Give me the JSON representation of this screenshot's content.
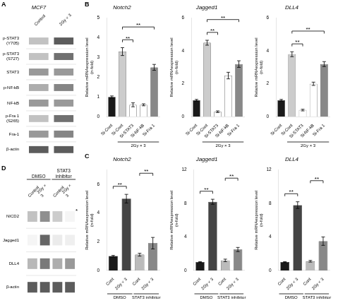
{
  "chart_data": [
    {
      "type": "heatmap",
      "title": "MCF7",
      "x": [
        "Control",
        "2Gy × 3"
      ],
      "y": [
        "p-STAT3\n(Y705)",
        "p-STAT3\n(S727)",
        "STAT3",
        "p-NF-kB",
        "NF-kB",
        "p-Fra 1\n(S265)",
        "Fra-1",
        "β-actin"
      ],
      "values": [
        [
          0.3,
          0.8
        ],
        [
          0.3,
          0.7
        ],
        [
          0.5,
          0.5
        ],
        [
          0.4,
          0.6
        ],
        [
          0.5,
          0.5
        ],
        [
          0.3,
          0.7
        ],
        [
          0.5,
          0.6
        ],
        [
          0.8,
          0.8
        ]
      ],
      "grid": false,
      "annotations": [
        {
          "text": "A"
        }
      ]
    },
    {
      "type": "bar",
      "title": "Notch2",
      "categories": [
        "Si-Cont",
        "Si-Cont",
        "Si-STAT3",
        "Si-NF-kB",
        "Si-Fra 1"
      ],
      "values": [
        1.0,
        3.3,
        0.6,
        0.6,
        2.5
      ],
      "errors": [
        0.05,
        0.2,
        0.1,
        0.05,
        0.15
      ],
      "colors": [
        "#1a1a1a",
        "#cccccc",
        "#ffffff",
        "#ffffff",
        "#888888"
      ],
      "ylim": [
        0,
        5
      ],
      "yticks": [
        0,
        1,
        2,
        3,
        4,
        5
      ],
      "ylabel": "Relative mRNAexpression level\n(n-fold)",
      "grid": false,
      "groups": [
        {
          "label": "2Gy × 3",
          "from": 1,
          "to": 4
        }
      ],
      "annotations": [
        {
          "text": "B"
        },
        {
          "text": "**",
          "between": [
            1,
            2
          ]
        },
        {
          "text": "**",
          "between": [
            1,
            4
          ]
        }
      ]
    },
    {
      "type": "bar",
      "title": "Jagged1",
      "categories": [
        "Si-Cont",
        "Si-Cont",
        "Si-STAT3",
        "Si-NF-kB",
        "Si-Fra 1"
      ],
      "values": [
        1.0,
        4.5,
        0.3,
        2.5,
        3.2
      ],
      "errors": [
        0.05,
        0.15,
        0.05,
        0.2,
        0.2
      ],
      "colors": [
        "#1a1a1a",
        "#cccccc",
        "#ffffff",
        "#ffffff",
        "#888888"
      ],
      "ylim": [
        0,
        6
      ],
      "yticks": [
        0,
        2,
        4,
        6
      ],
      "ylabel": "Relative mRNAexpression level\n(n-fold)",
      "grid": false,
      "groups": [
        {
          "label": "2Gy × 3",
          "from": 1,
          "to": 4
        }
      ],
      "annotations": [
        {
          "text": "**",
          "between": [
            1,
            2
          ]
        },
        {
          "text": "**",
          "between": [
            1,
            4
          ]
        }
      ]
    },
    {
      "type": "bar",
      "title": "DLL4",
      "categories": [
        "Si-Cont",
        "Si-Cont",
        "Si-STAT3",
        "Si-NF-kB",
        "Si-Fra 1"
      ],
      "values": [
        1.0,
        3.8,
        0.4,
        2.0,
        3.2
      ],
      "errors": [
        0.05,
        0.15,
        0.05,
        0.1,
        0.15
      ],
      "colors": [
        "#1a1a1a",
        "#cccccc",
        "#ffffff",
        "#ffffff",
        "#888888"
      ],
      "ylim": [
        0,
        6
      ],
      "yticks": [
        0,
        2,
        4,
        6
      ],
      "ylabel": "Relative mRNAexpression level\n(n-fold)",
      "grid": false,
      "groups": [
        {
          "label": "2Gy × 3",
          "from": 1,
          "to": 4
        }
      ],
      "annotations": [
        {
          "text": "**",
          "between": [
            1,
            2
          ]
        },
        {
          "text": "**",
          "between": [
            1,
            4
          ]
        }
      ]
    },
    {
      "type": "bar",
      "title": "Notch2",
      "categories": [
        "Cont",
        "2Gy × 3",
        "Cont",
        "2Gy × 3"
      ],
      "values": [
        1.0,
        5.0,
        1.1,
        1.9
      ],
      "errors": [
        0.05,
        0.3,
        0.1,
        0.4
      ],
      "colors": [
        "#1a1a1a",
        "#444444",
        "#bbbbbb",
        "#888888"
      ],
      "ylim": [
        0,
        7
      ],
      "yticks": [
        0,
        2,
        4,
        6
      ],
      "ylabel": "Relative mRNAexpression level\n(n-fold)",
      "grid": false,
      "groups": [
        {
          "label": "DMSO",
          "from": 0,
          "to": 1
        },
        {
          "label": "STAT3 inhibitor",
          "from": 2,
          "to": 3
        }
      ],
      "annotations": [
        {
          "text": "C"
        },
        {
          "text": "**",
          "between": [
            0,
            1
          ]
        },
        {
          "text": "**",
          "between": [
            2,
            3
          ]
        }
      ]
    },
    {
      "type": "bar",
      "title": "Jagged1",
      "categories": [
        "Cont",
        "2Gy × 3",
        "Cont",
        "2Gy × 3"
      ],
      "values": [
        1.0,
        8.2,
        1.2,
        2.5
      ],
      "errors": [
        0.05,
        0.3,
        0.15,
        0.25
      ],
      "colors": [
        "#1a1a1a",
        "#444444",
        "#bbbbbb",
        "#888888"
      ],
      "ylim": [
        0,
        12
      ],
      "yticks": [
        0,
        4,
        8,
        12
      ],
      "ylabel": "Relative mRNAexpression level\n(n-fold)",
      "grid": false,
      "groups": [
        {
          "label": "DMSO",
          "from": 0,
          "to": 1
        },
        {
          "label": "STAT3 inhibitor",
          "from": 2,
          "to": 3
        }
      ],
      "annotations": [
        {
          "text": "**",
          "between": [
            0,
            1
          ]
        },
        {
          "text": "**",
          "between": [
            2,
            3
          ]
        }
      ]
    },
    {
      "type": "bar",
      "title": "DLL4",
      "categories": [
        "Cont",
        "2Gy × 3",
        "Cont",
        "2Gy × 3"
      ],
      "values": [
        1.0,
        7.8,
        1.1,
        3.5
      ],
      "errors": [
        0.05,
        0.4,
        0.1,
        0.5
      ],
      "colors": [
        "#1a1a1a",
        "#444444",
        "#bbbbbb",
        "#888888"
      ],
      "ylim": [
        0,
        12
      ],
      "yticks": [
        0,
        4,
        8,
        12
      ],
      "ylabel": "Relative mRNAexpression level\n(n-fold)",
      "grid": false,
      "groups": [
        {
          "label": "DMSO",
          "from": 0,
          "to": 1
        },
        {
          "label": "STAT3 inhibitor",
          "from": 2,
          "to": 3
        }
      ],
      "annotations": [
        {
          "text": "**",
          "between": [
            0,
            1
          ]
        },
        {
          "text": "**",
          "between": [
            2,
            3
          ]
        }
      ]
    },
    {
      "type": "heatmap",
      "x": [
        "Control",
        "2Gy ×\n3",
        "Control",
        "2Gy ×\n3"
      ],
      "y": [
        "NICD2",
        "Jagged1",
        "DLL4",
        "β-actin"
      ],
      "values": [
        [
          0.3,
          0.55,
          0.25,
          0.05
        ],
        [
          0.05,
          0.75,
          0.1,
          0.08
        ],
        [
          0.35,
          0.65,
          0.4,
          0.5
        ],
        [
          0.8,
          0.8,
          0.8,
          0.8
        ]
      ],
      "grid": false,
      "groups": [
        {
          "label": "DMSO",
          "from": 0,
          "to": 1
        },
        {
          "label": "STAT3\ninhibitor",
          "from": 2,
          "to": 3
        }
      ],
      "annotations": [
        {
          "text": "D"
        },
        {
          "text": "*",
          "row": 0,
          "col": 3
        }
      ]
    }
  ]
}
